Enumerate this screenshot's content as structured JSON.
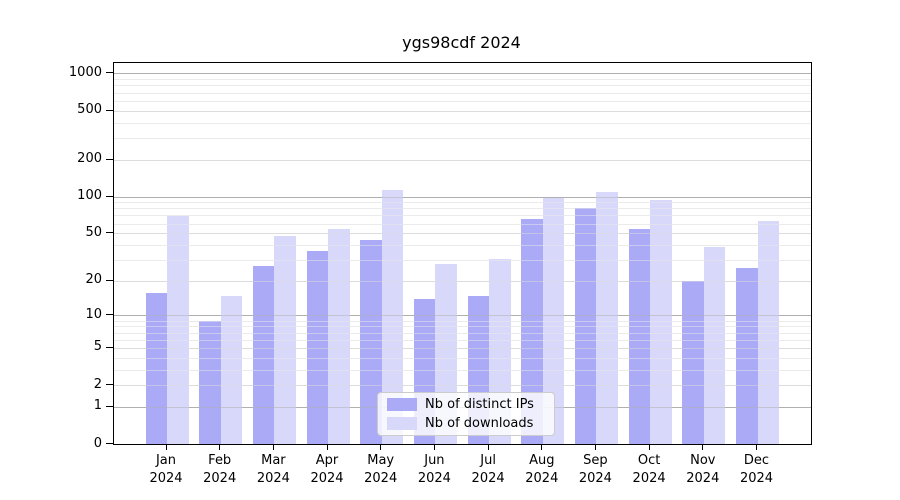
{
  "chart_data": {
    "type": "bar",
    "title": "ygs98cdf 2024",
    "year_label": "2024",
    "categories": [
      "Jan",
      "Feb",
      "Mar",
      "Apr",
      "May",
      "Jun",
      "Jul",
      "Aug",
      "Sep",
      "Oct",
      "Nov",
      "Dec"
    ],
    "series": [
      {
        "name": "Nb of distinct IPs",
        "color": "#aaaaf6",
        "values": [
          16,
          9,
          27,
          36,
          44,
          14,
          15,
          66,
          82,
          55,
          20,
          26
        ]
      },
      {
        "name": "Nb of downloads",
        "color": "#d8d8fa",
        "values": [
          70,
          15,
          48,
          55,
          115,
          28,
          31,
          98,
          110,
          94,
          39,
          63
        ]
      }
    ],
    "xlabel": "",
    "ylabel": "",
    "yscale": "log(1+y)",
    "yticks": [
      1000,
      500,
      200,
      100,
      50,
      20,
      10,
      5,
      2,
      1,
      0
    ],
    "ylim": [
      0,
      1200
    ],
    "grid": "on",
    "legend_position": "lower-center",
    "gridline_values": {
      "major": [
        1,
        10,
        100,
        1000
      ],
      "mid": [
        2,
        5,
        20,
        50,
        200,
        500
      ],
      "minor": [
        3,
        4,
        6,
        7,
        8,
        9,
        30,
        40,
        60,
        70,
        80,
        90,
        300,
        400,
        600,
        700,
        800,
        900
      ]
    },
    "colors": {
      "grid_major": "#b0b0b0",
      "grid_mid": "#dcdcdc",
      "grid_minor": "#ebebeb",
      "axis": "#000000",
      "background": "#ffffff"
    }
  }
}
